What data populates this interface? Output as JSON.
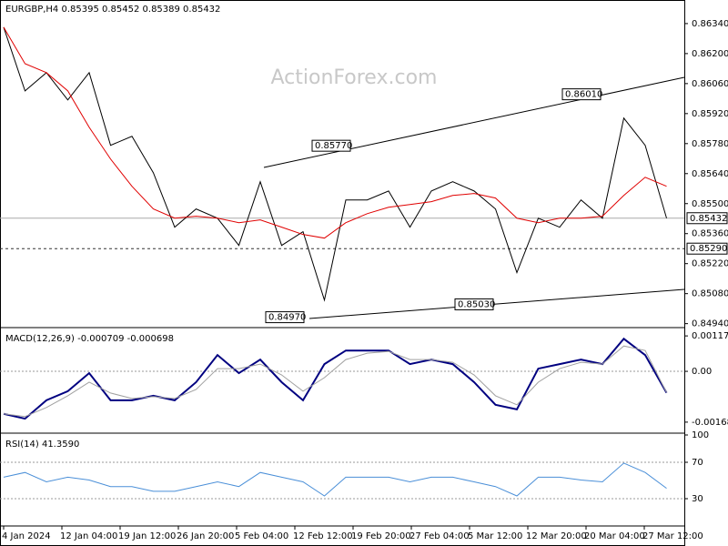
{
  "header": {
    "symbol": "EURGBP,H4 0.85395 0.85452 0.85389 0.85432",
    "watermark": "ActionForex.com"
  },
  "time_axis": [
    "4 Jan 2024",
    "12 Jan 04:00",
    "19 Jan 12:00",
    "26 Jan 20:00",
    "5 Feb 04:00",
    "12 Feb 12:00",
    "19 Feb 20:00",
    "27 Feb 04:00",
    "5 Mar 12:00",
    "12 Mar 20:00",
    "20 Mar 04:00",
    "27 Mar 12:00"
  ],
  "chart_data": [
    {
      "type": "line",
      "title": "",
      "ylim": [
        0.8493,
        0.8645
      ],
      "yticks": [
        {
          "value": 0.8634,
          "label": "0.86340"
        },
        {
          "value": 0.862,
          "label": "0.86200"
        },
        {
          "value": 0.8606,
          "label": "0.86060"
        },
        {
          "value": 0.8592,
          "label": "0.85920"
        },
        {
          "value": 0.8578,
          "label": "0.85780"
        },
        {
          "value": 0.8564,
          "label": "0.85640"
        },
        {
          "value": 0.855,
          "label": "0.85500"
        },
        {
          "value": 0.8536,
          "label": "0.85360"
        },
        {
          "value": 0.8522,
          "label": "0.85220"
        },
        {
          "value": 0.8508,
          "label": "0.85080"
        },
        {
          "value": 0.8494,
          "label": "0.84940"
        }
      ],
      "hlines": [
        {
          "value": 0.85432,
          "label": "0.85432",
          "style": "solid"
        },
        {
          "value": 0.8529,
          "label": "0.85290",
          "style": "dashed"
        }
      ],
      "annotations": [
        {
          "value": 0.8577,
          "label": "0.85770"
        },
        {
          "value": 0.8601,
          "label": "0.86010"
        },
        {
          "value": 0.8497,
          "label": "0.84970"
        },
        {
          "value": 0.8503,
          "label": "0.85030"
        }
      ],
      "series": [
        {
          "name": "EURGBP",
          "color": "#000000",
          "values": [
            0.86323,
            0.86026,
            0.86111,
            0.85984,
            0.86111,
            0.85772,
            0.85814,
            0.85644,
            0.8539,
            0.85475,
            0.85432,
            0.85305,
            0.85602,
            0.85305,
            0.85369,
            0.8505,
            0.85517,
            0.85517,
            0.85559,
            0.8539,
            0.85559,
            0.85602,
            0.85559,
            0.85475,
            0.85178,
            0.85432,
            0.8539,
            0.85517,
            0.85432,
            0.85899,
            0.85772,
            0.85432
          ]
        },
        {
          "name": "MA",
          "color": "#e00000",
          "values": [
            0.86323,
            0.86153,
            0.86111,
            0.86026,
            0.85856,
            0.85708,
            0.85581,
            0.85475,
            0.85432,
            0.85441,
            0.85432,
            0.85411,
            0.85424,
            0.8539,
            0.85356,
            0.85339,
            0.85411,
            0.85453,
            0.85483,
            0.85496,
            0.85509,
            0.85538,
            0.85547,
            0.85526,
            0.85432,
            0.85411,
            0.85432,
            0.85432,
            0.85441,
            0.85538,
            0.85623,
            0.85581
          ]
        }
      ]
    },
    {
      "type": "line",
      "title": "MACD(12,26,9) -0.000709 -0.000698",
      "ylim": [
        -0.00199,
        0.00139
      ],
      "yticks": [
        0.001175,
        {
          "value": 0,
          "label": "0.00"
        },
        -0.001685
      ],
      "reference_lines": [
        0
      ],
      "series": [
        {
          "name": "MACD",
          "color": "#000080",
          "width": 2,
          "values": [
            -0.00141,
            -0.00157,
            -0.00096,
            -0.00066,
            -6e-05,
            -0.00096,
            -0.00096,
            -0.00081,
            -0.00096,
            -0.00036,
            0.00054,
            -6e-05,
            0.00039,
            -0.00036,
            -0.00096,
            0.00024,
            0.00069,
            0.00069,
            0.00069,
            0.00024,
            0.00039,
            0.00024,
            -0.00036,
            -0.00111,
            -0.00126,
            9e-05,
            0.00024,
            0.00039,
            0.00024,
            0.00108,
            0.00054,
            -0.00071
          ]
        },
        {
          "name": "Signal",
          "color": "#a0a0a0",
          "width": 1,
          "values": [
            -0.00141,
            -0.0015,
            -0.0012,
            -0.00081,
            -0.00036,
            -0.00072,
            -0.0009,
            -0.00084,
            -0.0009,
            -0.0006,
            9e-05,
            9e-05,
            0.00024,
            -0.00012,
            -0.00066,
            -0.00021,
            0.00039,
            0.0006,
            0.00066,
            0.00039,
            0.00039,
            0.0003,
            -0.00012,
            -0.00081,
            -0.00111,
            -0.00036,
            9e-05,
            0.0003,
            0.00024,
            0.00084,
            0.00069,
            -0.0007
          ]
        }
      ]
    },
    {
      "type": "line",
      "title": "RSI(14) 41.3590",
      "ylim": [
        0,
        100
      ],
      "yticks": [
        100,
        70,
        30
      ],
      "reference_lines": [
        70,
        30
      ],
      "series": [
        {
          "name": "RSI",
          "color": "#4a8fd8",
          "width": 1,
          "values": [
            53.6,
            58.8,
            48.5,
            53.6,
            50.5,
            43.3,
            43.3,
            38.1,
            38.1,
            43.3,
            48.5,
            43.3,
            58.8,
            53.6,
            48.5,
            33.0,
            53.6,
            53.6,
            53.6,
            48.5,
            53.6,
            53.6,
            48.5,
            43.3,
            33.0,
            53.6,
            53.6,
            50.5,
            48.5,
            69.1,
            58.8,
            41.36
          ]
        }
      ]
    }
  ]
}
